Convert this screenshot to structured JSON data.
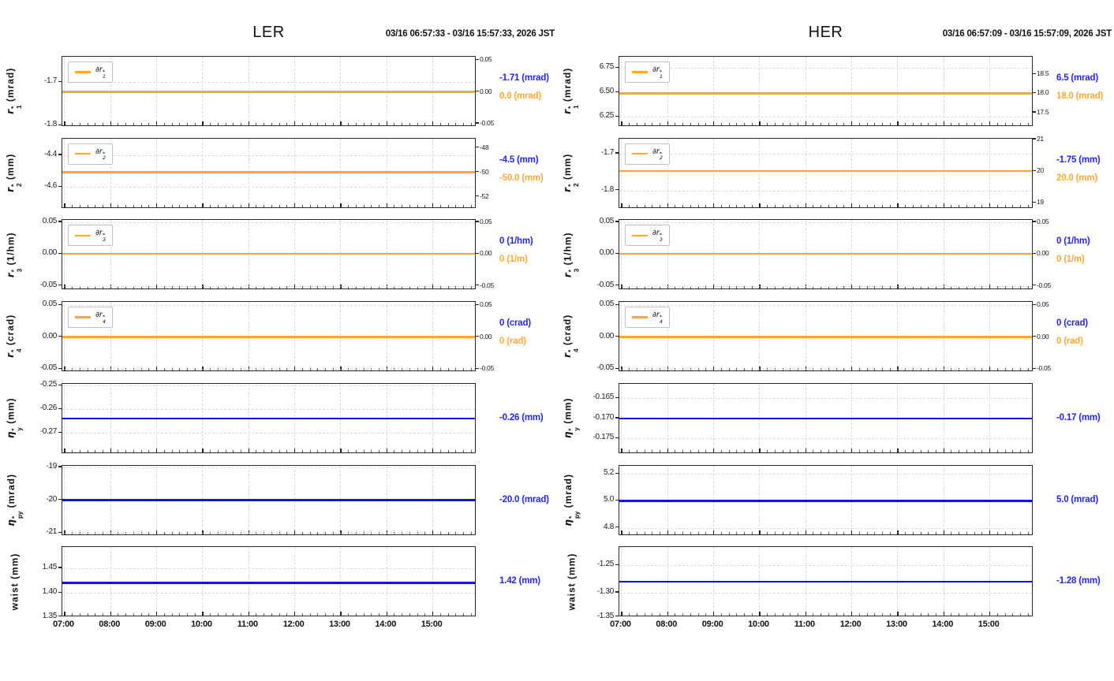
{
  "colors": {
    "orange_line": "#ffa630",
    "blue_line": "#1212e6",
    "orange_text": "#ffa833",
    "blue_text": "#2424ff",
    "grid": "#d9d9d9",
    "frame": "#2a2a2a"
  },
  "x_axis": {
    "tick_labels": [
      "07:00",
      "08:00",
      "09:00",
      "10:00",
      "11:00",
      "12:00",
      "13:00",
      "14:00",
      "15:00"
    ],
    "start_minutes": 417.5,
    "end_minutes": 957.5,
    "major_interval_min": 60,
    "minor_interval_min": 10
  },
  "chart_data": [
    {
      "type": "line",
      "title": "LER",
      "time_range_label": "03/16 06:57:33 - 03/16 15:57:33, 2026 JST",
      "charts": [
        {
          "id": "r1",
          "ylabel": {
            "sym": "r",
            "sub": "1",
            "sup": "*",
            "unit": "(mrad)",
            "italic": true
          },
          "legend": {
            "sym": "∂r",
            "sub": "1",
            "sup": "*"
          },
          "ylim": [
            -1.803,
            -1.641
          ],
          "yticks": [
            {
              "v": -1.7,
              "label": "-1.7"
            },
            {
              "v": -1.8,
              "label": "-1.8"
            }
          ],
          "right": {
            "ylim": [
              -0.055,
              0.055
            ],
            "ticks": [
              {
                "v": 0.05,
                "label": "0.05"
              },
              {
                "v": 0.0,
                "label": "0.00"
              },
              {
                "v": -0.05,
                "label": "-0.05"
              }
            ]
          },
          "series": {
            "axis": "right",
            "value": 0.0,
            "color": "orange"
          },
          "readouts": [
            {
              "text": "-1.71 (mrad)",
              "color": "blue"
            },
            {
              "text": "0.0 (mrad)",
              "color": "orange"
            }
          ]
        },
        {
          "id": "r2",
          "ylabel": {
            "sym": "r",
            "sub": "2",
            "sup": "*",
            "unit": "(mm)",
            "italic": true
          },
          "legend": {
            "sym": "∂r",
            "sub": "2",
            "sup": "*"
          },
          "ylim": [
            -4.737,
            -4.295
          ],
          "yticks": [
            {
              "v": -4.4,
              "label": "-4.4"
            },
            {
              "v": -4.6,
              "label": "-4.6"
            }
          ],
          "right": {
            "ylim": [
              -52.98,
              -47.22
            ],
            "ticks": [
              {
                "v": -48,
                "label": "-48"
              },
              {
                "v": -50,
                "label": "-50"
              },
              {
                "v": -52,
                "label": "-52"
              }
            ]
          },
          "series": {
            "axis": "right",
            "value": -50.0,
            "color": "orange"
          },
          "readouts": [
            {
              "text": "-4.5 (mm)",
              "color": "blue"
            },
            {
              "text": "-50.0 (mm)",
              "color": "orange"
            }
          ]
        },
        {
          "id": "r3",
          "ylabel": {
            "sym": "r",
            "sub": "3",
            "sup": "*",
            "unit": "(1/hm)",
            "italic": true
          },
          "legend": {
            "sym": "∂r",
            "sub": "3",
            "sup": "*"
          },
          "ylim": [
            -0.057,
            0.053
          ],
          "yticks": [
            {
              "v": 0.05,
              "label": "0.05"
            },
            {
              "v": 0.0,
              "label": "0.00"
            },
            {
              "v": -0.05,
              "label": "-0.05"
            }
          ],
          "right": {
            "ylim": [
              -0.057,
              0.053
            ],
            "ticks": [
              {
                "v": 0.05,
                "label": "0.05"
              },
              {
                "v": 0.0,
                "label": "0.00"
              },
              {
                "v": -0.05,
                "label": "-0.05"
              }
            ]
          },
          "series": {
            "axis": "right",
            "value": 0.0,
            "color": "orange"
          },
          "readouts": [
            {
              "text": "0 (1/hm)",
              "color": "blue"
            },
            {
              "text": "0 (1/m)",
              "color": "orange"
            }
          ]
        },
        {
          "id": "r4",
          "ylabel": {
            "sym": "r",
            "sub": "4",
            "sup": "*",
            "unit": "(crad)",
            "italic": true
          },
          "legend": {
            "sym": "∂r",
            "sub": "4",
            "sup": "*"
          },
          "ylim": [
            -0.055,
            0.055
          ],
          "yticks": [
            {
              "v": 0.05,
              "label": "0.05"
            },
            {
              "v": 0.0,
              "label": "0.00"
            },
            {
              "v": -0.05,
              "label": "-0.05"
            }
          ],
          "right": {
            "ylim": [
              -0.055,
              0.055
            ],
            "ticks": [
              {
                "v": 0.05,
                "label": "0.05"
              },
              {
                "v": 0.0,
                "label": "0.00"
              },
              {
                "v": -0.05,
                "label": "-0.05"
              }
            ]
          },
          "series": {
            "axis": "right",
            "value": 0.0,
            "color": "orange"
          },
          "readouts": [
            {
              "text": "0 (crad)",
              "color": "blue"
            },
            {
              "text": "0 (rad)",
              "color": "orange"
            }
          ]
        },
        {
          "id": "eta-y",
          "ylabel": {
            "sym": "η",
            "sub": "y",
            "sup": "*",
            "unit": "(mm)",
            "italic": true
          },
          "legend": null,
          "ylim": [
            -0.279,
            -0.2491
          ],
          "yticks": [
            {
              "v": -0.25,
              "label": "-0.25"
            },
            {
              "v": -0.26,
              "label": "-0.26"
            },
            {
              "v": -0.27,
              "label": "-0.27"
            }
          ],
          "right": null,
          "series": {
            "axis": "left",
            "value": -0.264,
            "color": "blue"
          },
          "readouts": [
            {
              "text": "-0.26 (mm)",
              "color": "blue"
            }
          ]
        },
        {
          "id": "eta-py",
          "ylabel": {
            "sym": "η",
            "sub": "py",
            "sup": "*",
            "unit": "(mrad)",
            "italic": true
          },
          "legend": null,
          "ylim": [
            -21.08,
            -18.944
          ],
          "yticks": [
            {
              "v": -19,
              "label": "-19"
            },
            {
              "v": -20,
              "label": "-20"
            },
            {
              "v": -21,
              "label": "-21"
            }
          ],
          "right": null,
          "series": {
            "axis": "left",
            "value": -20.0,
            "color": "blue"
          },
          "readouts": [
            {
              "text": "-20.0 (mrad)",
              "color": "blue"
            }
          ]
        },
        {
          "id": "waist",
          "ylabel": {
            "sym": "waist",
            "sub": "",
            "sup": "",
            "unit": "(mm)",
            "italic": false
          },
          "legend": null,
          "ylim": [
            1.35,
            1.493
          ],
          "yticks": [
            {
              "v": 1.45,
              "label": "1.45"
            },
            {
              "v": 1.4,
              "label": "1.40"
            },
            {
              "v": 1.35,
              "label": "1.35"
            }
          ],
          "right": null,
          "series": {
            "axis": "left",
            "value": 1.42,
            "color": "blue"
          },
          "readouts": [
            {
              "text": "1.42 (mm)",
              "color": "blue"
            }
          ]
        }
      ]
    },
    {
      "type": "line",
      "title": "HER",
      "time_range_label": "03/16 06:57:09 - 03/16 15:57:09, 2026 JST",
      "charts": [
        {
          "id": "r1",
          "ylabel": {
            "sym": "r",
            "sub": "1",
            "sup": "*",
            "unit": "(mrad)",
            "italic": true
          },
          "legend": {
            "sym": "∂r",
            "sub": "1",
            "sup": "*"
          },
          "ylim": [
            6.147,
            6.863
          ],
          "yticks": [
            {
              "v": 6.75,
              "label": "6.75"
            },
            {
              "v": 6.5,
              "label": "6.50"
            },
            {
              "v": 6.25,
              "label": "6.25"
            }
          ],
          "right": {
            "ylim": [
              17.13,
              18.95
            ],
            "ticks": [
              {
                "v": 18.5,
                "label": "18.5"
              },
              {
                "v": 18.0,
                "label": "18.0"
              },
              {
                "v": 17.5,
                "label": "17.5"
              }
            ]
          },
          "series": {
            "axis": "right",
            "value": 18.0,
            "color": "orange"
          },
          "readouts": [
            {
              "text": "6.5 (mrad)",
              "color": "blue"
            },
            {
              "text": "18.0 (mrad)",
              "color": "orange"
            }
          ]
        },
        {
          "id": "r2",
          "ylabel": {
            "sym": "r",
            "sub": "2",
            "sup": "*",
            "unit": "(mm)",
            "italic": true
          },
          "legend": {
            "sym": "∂r",
            "sub": "2",
            "sup": "*"
          },
          "ylim": [
            -1.849,
            -1.659
          ],
          "yticks": [
            {
              "v": -1.7,
              "label": "-1.7"
            },
            {
              "v": -1.8,
              "label": "-1.8"
            }
          ],
          "right": {
            "ylim": [
              18.82,
              21.03
            ],
            "ticks": [
              {
                "v": 21,
                "label": "21"
              },
              {
                "v": 20,
                "label": "20"
              },
              {
                "v": 19,
                "label": "19"
              }
            ]
          },
          "series": {
            "axis": "right",
            "value": 20.0,
            "color": "orange"
          },
          "readouts": [
            {
              "text": "-1.75 (mm)",
              "color": "blue"
            },
            {
              "text": "20.0 (mm)",
              "color": "orange"
            }
          ]
        },
        {
          "id": "r3",
          "ylabel": {
            "sym": "r",
            "sub": "3",
            "sup": "*",
            "unit": "(1/hm)",
            "italic": true
          },
          "legend": {
            "sym": "∂r",
            "sub": "3",
            "sup": "*"
          },
          "ylim": [
            -0.057,
            0.053
          ],
          "yticks": [
            {
              "v": 0.05,
              "label": "0.05"
            },
            {
              "v": 0.0,
              "label": "0.00"
            },
            {
              "v": -0.05,
              "label": "-0.05"
            }
          ],
          "right": {
            "ylim": [
              -0.057,
              0.053
            ],
            "ticks": [
              {
                "v": 0.05,
                "label": "0.05"
              },
              {
                "v": 0.0,
                "label": "0.00"
              },
              {
                "v": -0.05,
                "label": "-0.05"
              }
            ]
          },
          "series": {
            "axis": "right",
            "value": 0.0,
            "color": "orange"
          },
          "readouts": [
            {
              "text": "0 (1/hm)",
              "color": "blue"
            },
            {
              "text": "0 (1/m)",
              "color": "orange"
            }
          ]
        },
        {
          "id": "r4",
          "ylabel": {
            "sym": "r",
            "sub": "4",
            "sup": "*",
            "unit": "(crad)",
            "italic": true
          },
          "legend": {
            "sym": "∂r",
            "sub": "4",
            "sup": "*"
          },
          "ylim": [
            -0.055,
            0.055
          ],
          "yticks": [
            {
              "v": 0.05,
              "label": "0.05"
            },
            {
              "v": 0.0,
              "label": "0.00"
            },
            {
              "v": -0.05,
              "label": "-0.05"
            }
          ],
          "right": {
            "ylim": [
              -0.055,
              0.055
            ],
            "ticks": [
              {
                "v": 0.05,
                "label": "0.05"
              },
              {
                "v": 0.0,
                "label": "0.00"
              },
              {
                "v": -0.05,
                "label": "-0.05"
              }
            ]
          },
          "series": {
            "axis": "right",
            "value": 0.0,
            "color": "orange"
          },
          "readouts": [
            {
              "text": "0 (crad)",
              "color": "blue"
            },
            {
              "text": "0 (rad)",
              "color": "orange"
            }
          ]
        },
        {
          "id": "eta-y",
          "ylabel": {
            "sym": "η",
            "sub": "y",
            "sup": "*",
            "unit": "(mm)",
            "italic": true
          },
          "legend": null,
          "ylim": [
            -0.17886,
            -0.16132
          ],
          "yticks": [
            {
              "v": -0.165,
              "label": "-0.165"
            },
            {
              "v": -0.17,
              "label": "-0.170"
            },
            {
              "v": -0.175,
              "label": "-0.175"
            }
          ],
          "right": null,
          "series": {
            "axis": "left",
            "value": -0.17,
            "color": "blue"
          },
          "readouts": [
            {
              "text": "-0.17 (mm)",
              "color": "blue"
            }
          ]
        },
        {
          "id": "eta-py",
          "ylabel": {
            "sym": "η",
            "sub": "py",
            "sup": "*",
            "unit": "(mrad)",
            "italic": true
          },
          "legend": null,
          "ylim": [
            4.743,
            5.262
          ],
          "yticks": [
            {
              "v": 5.2,
              "label": "5.2"
            },
            {
              "v": 5.0,
              "label": "5.0"
            },
            {
              "v": 4.8,
              "label": "4.8"
            }
          ],
          "right": null,
          "series": {
            "axis": "left",
            "value": 5.0,
            "color": "blue"
          },
          "readouts": [
            {
              "text": "5.0 (mrad)",
              "color": "blue"
            }
          ]
        },
        {
          "id": "waist",
          "ylabel": {
            "sym": "waist",
            "sub": "",
            "sup": "",
            "unit": "(mm)",
            "italic": false
          },
          "legend": null,
          "ylim": [
            -1.345,
            -1.217
          ],
          "yticks": [
            {
              "v": -1.25,
              "label": "-1.25"
            },
            {
              "v": -1.3,
              "label": "-1.30"
            },
            {
              "v": -1.35,
              "label": "-1.35"
            }
          ],
          "right": null,
          "series": {
            "axis": "left",
            "value": -1.28,
            "color": "blue"
          },
          "readouts": [
            {
              "text": "-1.28 (mm)",
              "color": "blue"
            }
          ]
        }
      ]
    }
  ]
}
